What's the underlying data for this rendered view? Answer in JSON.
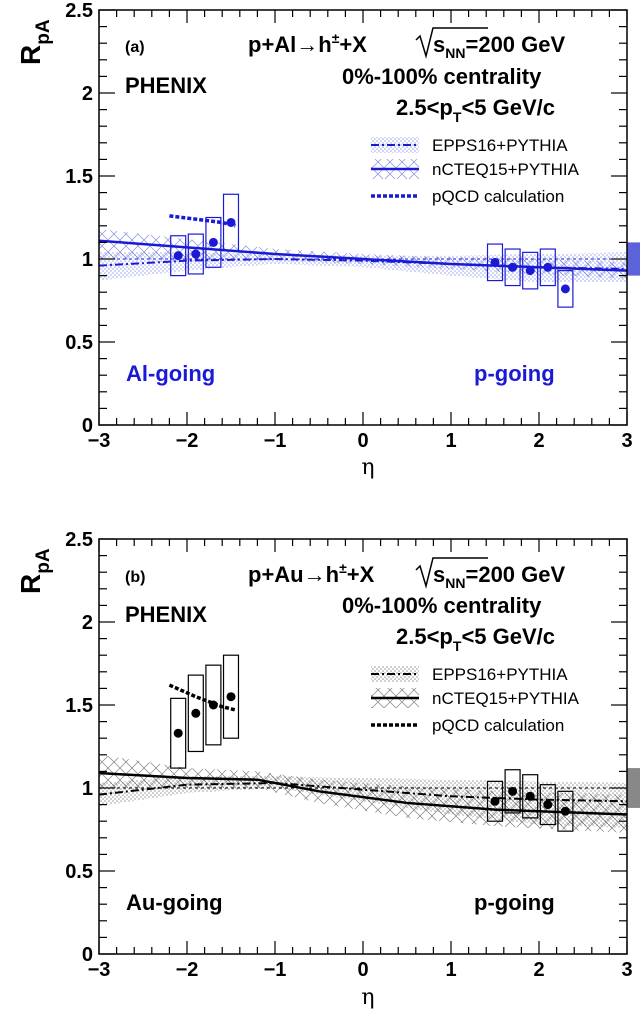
{
  "panels": [
    {
      "panel_label": "(a)",
      "experiment": "PHENIX",
      "reaction": "p+Al→h",
      "reaction_sup": "±",
      "reaction_tail": "+X",
      "energy_sqrt": "s",
      "energy_sub": "NN",
      "energy_tail": "=200 GeV",
      "centrality": "0%-100% centrality",
      "pt_pre": "2.5<p",
      "pt_sub": "T",
      "pt_post": "<5 GeV/c",
      "left_region": "Al-going",
      "right_region": "p-going",
      "accent": "#1a1ad6",
      "legend": [
        "EPPS16+PYTHIA",
        "nCTEQ15+PYTHIA",
        "pQCD calculation"
      ]
    },
    {
      "panel_label": "(b)",
      "experiment": "PHENIX",
      "reaction": "p+Au→h",
      "reaction_sup": "±",
      "reaction_tail": "+X",
      "energy_sqrt": "s",
      "energy_sub": "NN",
      "energy_tail": "=200 GeV",
      "centrality": "0%-100% centrality",
      "pt_pre": "2.5<p",
      "pt_sub": "T",
      "pt_post": "<5 GeV/c",
      "left_region": "Au-going",
      "right_region": "p-going",
      "accent": "#000000",
      "legend": [
        "EPPS16+PYTHIA",
        "nCTEQ15+PYTHIA",
        "pQCD calculation"
      ]
    }
  ],
  "chart_data": [
    {
      "type": "scatter",
      "xlabel": "η",
      "ylabel_main": "R",
      "ylabel_sub": "pA",
      "xlim": [
        -3,
        3
      ],
      "ylim": [
        0,
        2.5
      ],
      "xticks": [
        "−3",
        "−2",
        "−1",
        "0",
        "1",
        "2",
        "3"
      ],
      "yticks": [
        "0",
        "0.5",
        "1",
        "1.5",
        "2",
        "2.5"
      ],
      "grid": false,
      "legend_position": "top-right",
      "points": {
        "x": [
          -2.1,
          -1.9,
          -1.7,
          -1.5,
          1.5,
          1.7,
          1.9,
          2.1,
          2.3
        ],
        "y": [
          1.02,
          1.03,
          1.1,
          1.22,
          0.98,
          0.95,
          0.93,
          0.95,
          0.82
        ],
        "syst": [
          0.12,
          0.12,
          0.15,
          0.17,
          0.11,
          0.11,
          0.11,
          0.11,
          0.11
        ]
      },
      "global_uncertainty_band": [
        0.9,
        1.1
      ],
      "epps16": {
        "x": [
          -3,
          -2,
          -1,
          0,
          1,
          2,
          3
        ],
        "y": [
          0.96,
          0.99,
          1.0,
          0.99,
          0.97,
          0.95,
          0.94
        ],
        "lo": [
          0.87,
          0.93,
          0.97,
          0.95,
          0.9,
          0.86,
          0.86
        ],
        "hi": [
          1.04,
          1.04,
          1.03,
          1.02,
          1.02,
          1.03,
          1.04
        ]
      },
      "ncteq15": {
        "x": [
          -3,
          -2,
          -1,
          0,
          1,
          2,
          3
        ],
        "y": [
          1.11,
          1.07,
          1.03,
          1.0,
          0.97,
          0.95,
          0.93
        ],
        "lo": [
          1.0,
          1.0,
          0.99,
          0.97,
          0.94,
          0.91,
          0.88
        ],
        "hi": [
          1.18,
          1.12,
          1.06,
          1.03,
          1.01,
          1.0,
          0.98
        ]
      },
      "pqcd": {
        "x": [
          -2.2,
          -1.9,
          -1.6,
          -1.45
        ],
        "y": [
          1.26,
          1.24,
          1.22,
          1.2
        ]
      }
    },
    {
      "type": "scatter",
      "xlabel": "η",
      "ylabel_main": "R",
      "ylabel_sub": "pA",
      "xlim": [
        -3,
        3
      ],
      "ylim": [
        0,
        2.5
      ],
      "xticks": [
        "−3",
        "−2",
        "−1",
        "0",
        "1",
        "2",
        "3"
      ],
      "yticks": [
        "0",
        "0.5",
        "1",
        "1.5",
        "2",
        "2.5"
      ],
      "grid": false,
      "legend_position": "top-right",
      "points": {
        "x": [
          -2.1,
          -1.9,
          -1.7,
          -1.5,
          1.5,
          1.7,
          1.9,
          2.1,
          2.3
        ],
        "y": [
          1.33,
          1.45,
          1.5,
          1.55,
          0.92,
          0.98,
          0.95,
          0.9,
          0.86
        ],
        "syst": [
          0.21,
          0.23,
          0.24,
          0.25,
          0.12,
          0.13,
          0.13,
          0.12,
          0.12
        ]
      },
      "global_uncertainty_band": [
        0.88,
        1.12
      ],
      "epps16": {
        "x": [
          -3,
          -2,
          -1,
          0,
          1,
          2,
          3
        ],
        "y": [
          0.96,
          1.02,
          1.03,
          0.99,
          0.95,
          0.93,
          0.92
        ],
        "lo": [
          0.89,
          0.97,
          1.0,
          0.92,
          0.84,
          0.78,
          0.76
        ],
        "hi": [
          1.03,
          1.07,
          1.07,
          1.06,
          1.05,
          1.04,
          1.03
        ]
      },
      "ncteq15": {
        "x": [
          -3,
          -2,
          -1.2,
          -0.5,
          0.5,
          1.5,
          3
        ],
        "y": [
          1.09,
          1.06,
          1.05,
          0.98,
          0.91,
          0.87,
          0.84
        ],
        "lo": [
          1.0,
          1.0,
          1.0,
          0.91,
          0.82,
          0.77,
          0.73
        ],
        "hi": [
          1.2,
          1.12,
          1.1,
          1.05,
          1.01,
          0.98,
          0.96
        ]
      },
      "pqcd": {
        "x": [
          -2.2,
          -1.9,
          -1.6,
          -1.45
        ],
        "y": [
          1.62,
          1.55,
          1.49,
          1.47
        ]
      }
    }
  ]
}
